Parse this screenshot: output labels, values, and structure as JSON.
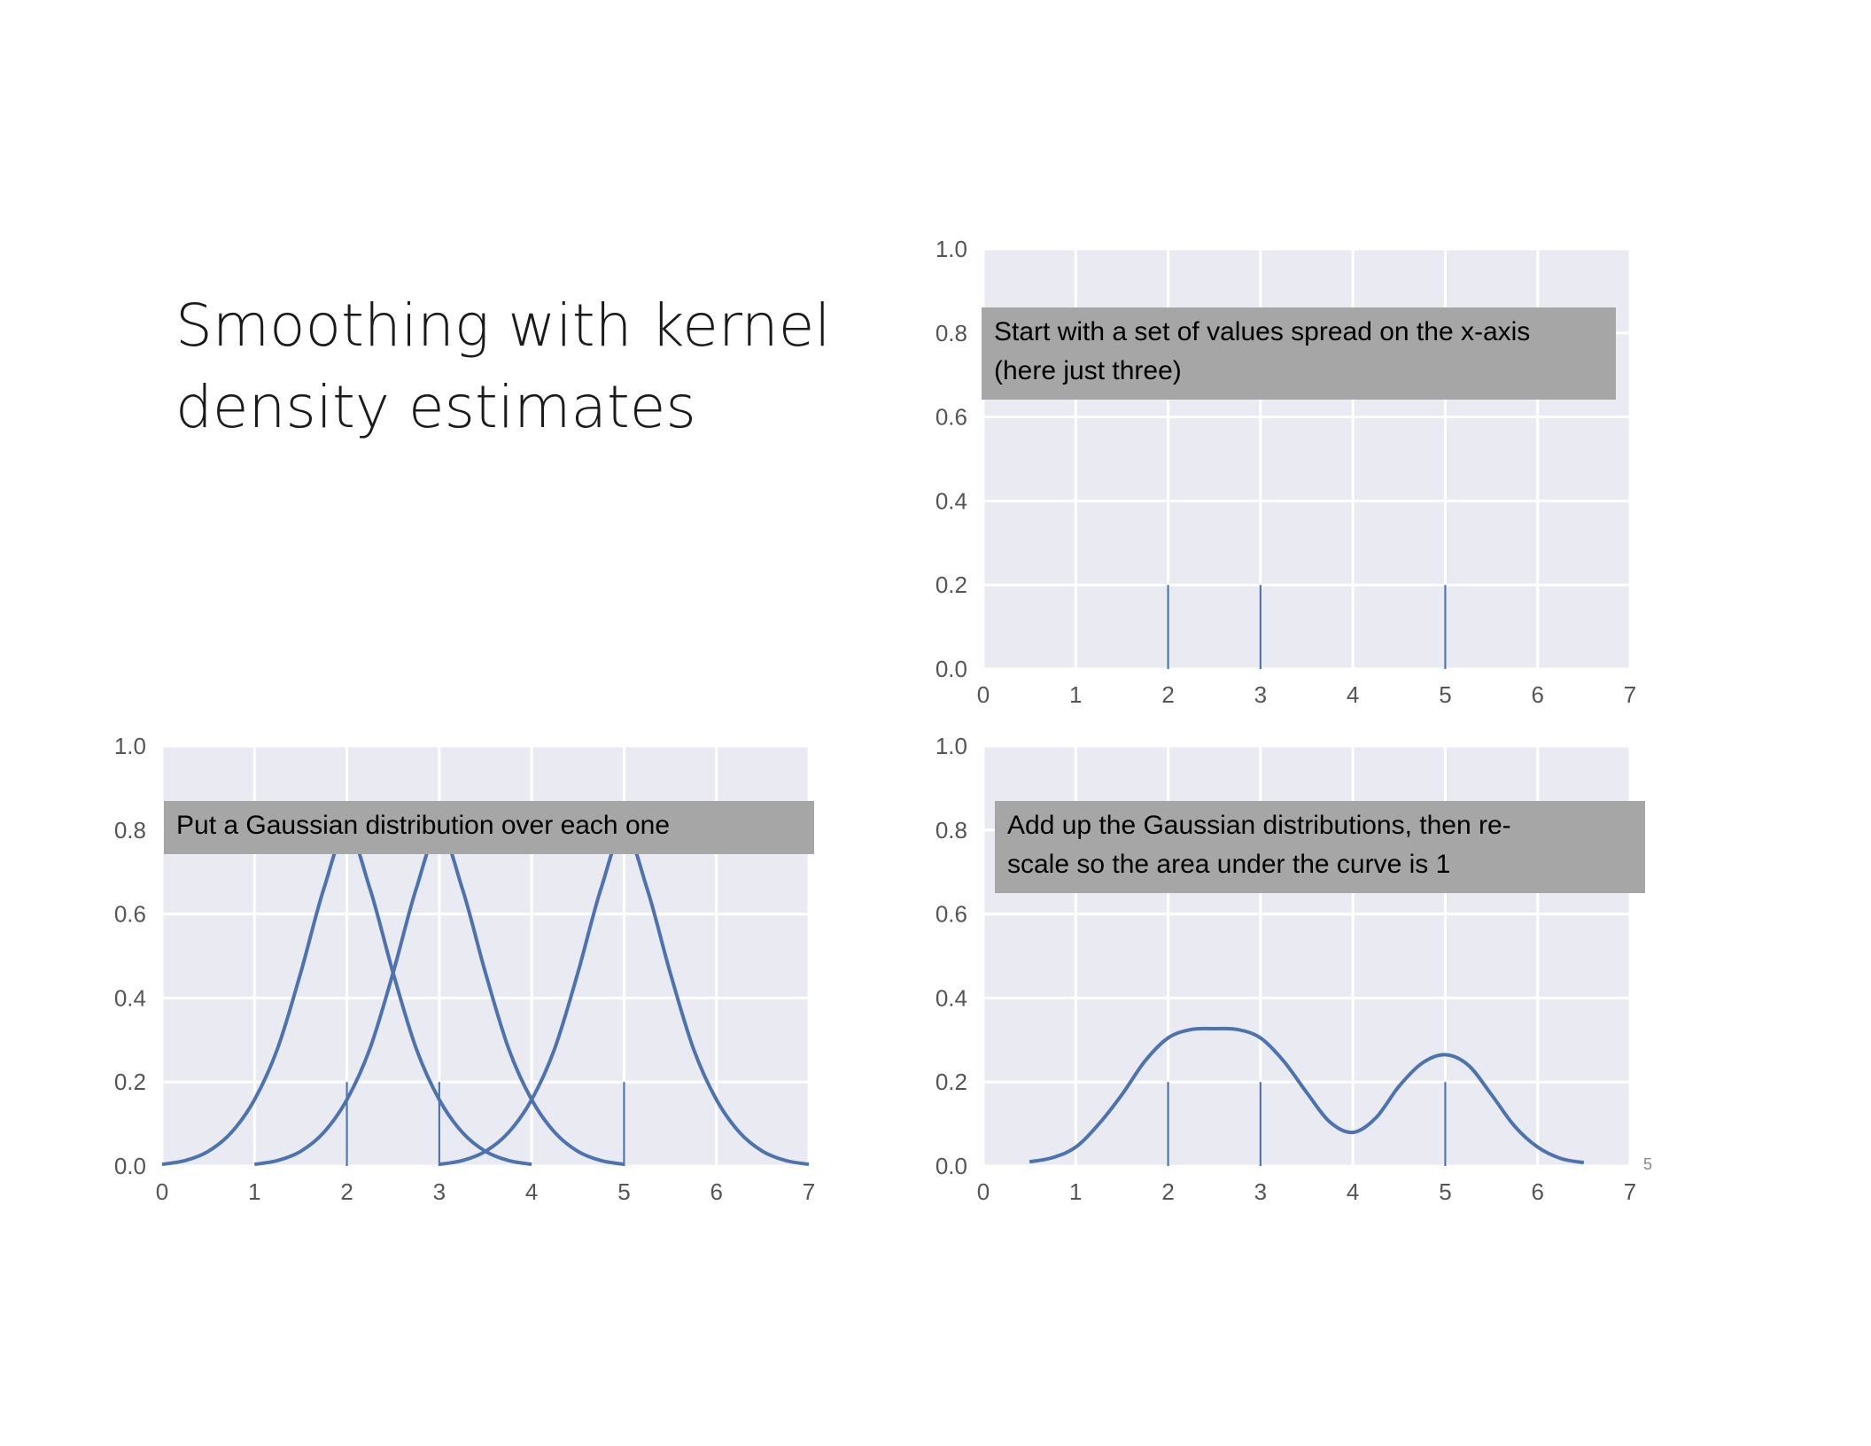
{
  "slide": {
    "title": "Smoothing with kernel\ndensity estimates",
    "page_number": "5"
  },
  "colors": {
    "plot_background": "#eaeaf2",
    "grid": "#ffffff",
    "series": "#4c72b0",
    "callout_background": "#a6a6a6",
    "tick_label": "#555555"
  },
  "chart_data": [
    {
      "id": "top",
      "type": "line",
      "annotation": "Start with a set of values spread on the x-axis\n(here just three)",
      "xlim": [
        0,
        7
      ],
      "ylim": [
        0,
        1.0
      ],
      "xticks": [
        "0",
        "1",
        "2",
        "3",
        "4",
        "5",
        "6",
        "7"
      ],
      "yticks": [
        "0.0",
        "0.2",
        "0.4",
        "0.6",
        "0.8",
        "1.0"
      ],
      "grid": true,
      "rug": {
        "values": [
          2,
          3,
          5
        ],
        "height": 0.2
      },
      "series": []
    },
    {
      "id": "left",
      "type": "line",
      "annotation": "Put a Gaussian distribution over each one",
      "xlim": [
        0,
        7
      ],
      "ylim": [
        0,
        1.0
      ],
      "xticks": [
        "0",
        "1",
        "2",
        "3",
        "4",
        "5",
        "6",
        "7"
      ],
      "yticks": [
        "0.0",
        "0.2",
        "0.4",
        "0.6",
        "0.8",
        "1.0"
      ],
      "grid": true,
      "rug": {
        "values": [
          2,
          3,
          5
        ],
        "height": 0.2
      },
      "series": [
        {
          "x": [
            0.0,
            0.25,
            0.5,
            0.75,
            1.0,
            1.25,
            1.5,
            1.75,
            2.0,
            2.25,
            2.5,
            2.75,
            3.0,
            3.25,
            3.5,
            3.75,
            4.0
          ],
          "y": [
            0.004,
            0.013,
            0.035,
            0.08,
            0.158,
            0.28,
            0.46,
            0.66,
            0.8,
            0.66,
            0.46,
            0.28,
            0.158,
            0.08,
            0.035,
            0.013,
            0.004
          ]
        },
        {
          "x": [
            1.0,
            1.25,
            1.5,
            1.75,
            2.0,
            2.25,
            2.5,
            2.75,
            3.0,
            3.25,
            3.5,
            3.75,
            4.0,
            4.25,
            4.5,
            4.75,
            5.0
          ],
          "y": [
            0.004,
            0.013,
            0.035,
            0.08,
            0.158,
            0.28,
            0.46,
            0.66,
            0.8,
            0.66,
            0.46,
            0.28,
            0.158,
            0.08,
            0.035,
            0.013,
            0.004
          ]
        },
        {
          "x": [
            3.0,
            3.25,
            3.5,
            3.75,
            4.0,
            4.25,
            4.5,
            4.75,
            5.0,
            5.25,
            5.5,
            5.75,
            6.0,
            6.25,
            6.5,
            6.75,
            7.0
          ],
          "y": [
            0.004,
            0.013,
            0.035,
            0.08,
            0.158,
            0.28,
            0.46,
            0.66,
            0.8,
            0.66,
            0.46,
            0.28,
            0.158,
            0.08,
            0.035,
            0.013,
            0.004
          ]
        }
      ]
    },
    {
      "id": "right",
      "type": "line",
      "annotation": "Add up the Gaussian distributions, then re-\nscale so the area under the curve is 1",
      "xlim": [
        0,
        7
      ],
      "ylim": [
        0,
        1.0
      ],
      "xticks": [
        "0",
        "1",
        "2",
        "3",
        "4",
        "5",
        "6",
        "7"
      ],
      "yticks": [
        "0.0",
        "0.2",
        "0.4",
        "0.6",
        "0.8",
        "1.0"
      ],
      "grid": true,
      "rug": {
        "values": [
          2,
          3,
          5
        ],
        "height": 0.2
      },
      "series": [
        {
          "x": [
            0.5,
            0.75,
            1.0,
            1.25,
            1.5,
            1.75,
            2.0,
            2.25,
            2.5,
            2.75,
            3.0,
            3.25,
            3.5,
            3.75,
            4.0,
            4.25,
            4.5,
            4.75,
            5.0,
            5.25,
            5.5,
            5.75,
            6.0,
            6.25,
            6.5
          ],
          "y": [
            0.01,
            0.02,
            0.045,
            0.1,
            0.17,
            0.25,
            0.305,
            0.325,
            0.327,
            0.325,
            0.305,
            0.25,
            0.175,
            0.105,
            0.08,
            0.115,
            0.19,
            0.245,
            0.265,
            0.24,
            0.17,
            0.095,
            0.045,
            0.018,
            0.008
          ]
        }
      ]
    }
  ]
}
